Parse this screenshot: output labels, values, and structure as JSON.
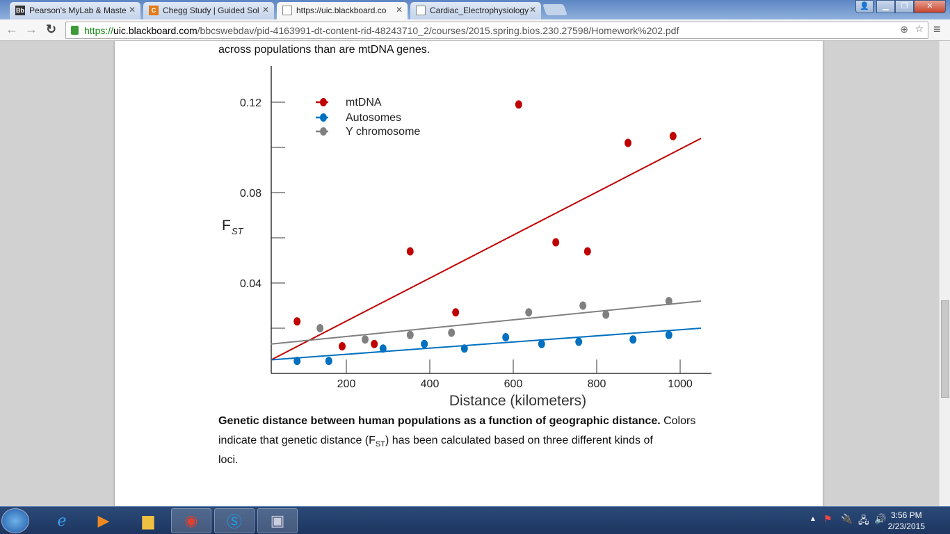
{
  "tabs": [
    {
      "label": "Pearson's MyLab & Maste",
      "icon": "blackboard-icon",
      "active": false
    },
    {
      "label": "Chegg Study | Guided Sol",
      "icon": "chegg-icon",
      "active": false
    },
    {
      "label": "https://uic.blackboard.co",
      "icon": "document-icon",
      "active": true
    },
    {
      "label": "Cardiac_Electrophysiology",
      "icon": "document-icon",
      "active": false
    }
  ],
  "address": {
    "scheme": "https://",
    "domain": "uic.blackboard.com",
    "path": "/bbcswebdav/pid-4163991-dt-content-rid-48243710_2/courses/2015.spring.bios.230.27598/Homework%202.pdf"
  },
  "document": {
    "top_text": "across populations than are mtDNA genes.",
    "caption_bold": "Genetic distance between human populations as a function of geographic distance.",
    "caption_rest_1": " Colors",
    "caption_line2a": "indicate that genetic distance (F",
    "caption_sub": "ST",
    "caption_line2b": ") has been calculated based on three different kinds of",
    "caption_line3": "loci."
  },
  "chart_data": {
    "type": "scatter",
    "xlabel": "Distance  (kilometers)",
    "ylabel": "F",
    "ylabel_sub": "ST",
    "xlim": [
      20,
      1075
    ],
    "ylim": [
      0,
      0.136
    ],
    "xticks": [
      200,
      400,
      600,
      800,
      1000
    ],
    "yticks": [
      0.02,
      0.04,
      0.06,
      0.08,
      0.1,
      0.12
    ],
    "ytick_labels": [
      "",
      "0.04",
      "",
      "0.08",
      "",
      "0.12"
    ],
    "legend": "top-left",
    "series": [
      {
        "name": "mtDNA",
        "color": "#c00000",
        "x": [
          82,
          190,
          267,
          353,
          462,
          613,
          702,
          778,
          875,
          983
        ],
        "y": [
          0.023,
          0.012,
          0.013,
          0.054,
          0.027,
          0.119,
          0.058,
          0.054,
          0.102,
          0.105
        ],
        "trend": [
          [
            20,
            0.006
          ],
          [
            1050,
            0.104
          ]
        ]
      },
      {
        "name": "Autosomes",
        "color": "#0070c0",
        "x": [
          82,
          158,
          288,
          387,
          483,
          582,
          668,
          757,
          887,
          973
        ],
        "y": [
          0.0055,
          0.0055,
          0.011,
          0.013,
          0.011,
          0.016,
          0.013,
          0.014,
          0.015,
          0.017
        ],
        "trend": [
          [
            20,
            0.006
          ],
          [
            1050,
            0.02
          ]
        ]
      },
      {
        "name": "Y chromosome",
        "color": "#808080",
        "x": [
          137,
          245,
          353,
          452,
          637,
          767,
          822,
          973
        ],
        "y": [
          0.02,
          0.015,
          0.017,
          0.018,
          0.027,
          0.03,
          0.026,
          0.032
        ],
        "trend": [
          [
            20,
            0.013
          ],
          [
            1050,
            0.032
          ]
        ]
      }
    ]
  },
  "taskbar": {
    "apps": [
      "start-button",
      "ie-icon",
      "media-player-icon",
      "file-explorer-icon",
      "chrome-icon",
      "skype-icon",
      "remote-desktop-icon"
    ],
    "time": "3:56 PM",
    "date": "2/23/2015"
  }
}
